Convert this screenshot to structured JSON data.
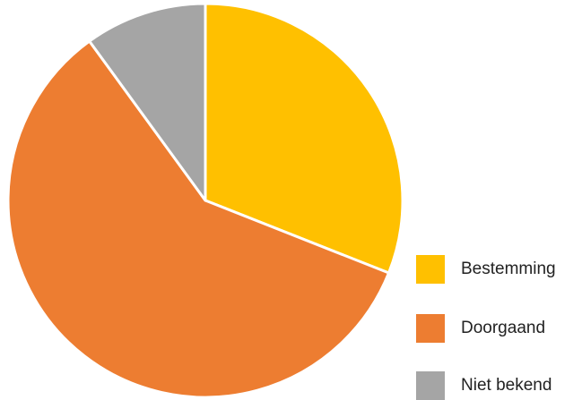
{
  "chart_data": {
    "type": "pie",
    "categories": [
      "Bestemming",
      "Doorgaand",
      "Niet bekend"
    ],
    "values": [
      31,
      59,
      10
    ],
    "colors": [
      "#FFC000",
      "#ED7D31",
      "#A5A5A5"
    ],
    "start_angle_deg": 0,
    "direction": "clockwise",
    "legend_position": "right-bottom"
  }
}
